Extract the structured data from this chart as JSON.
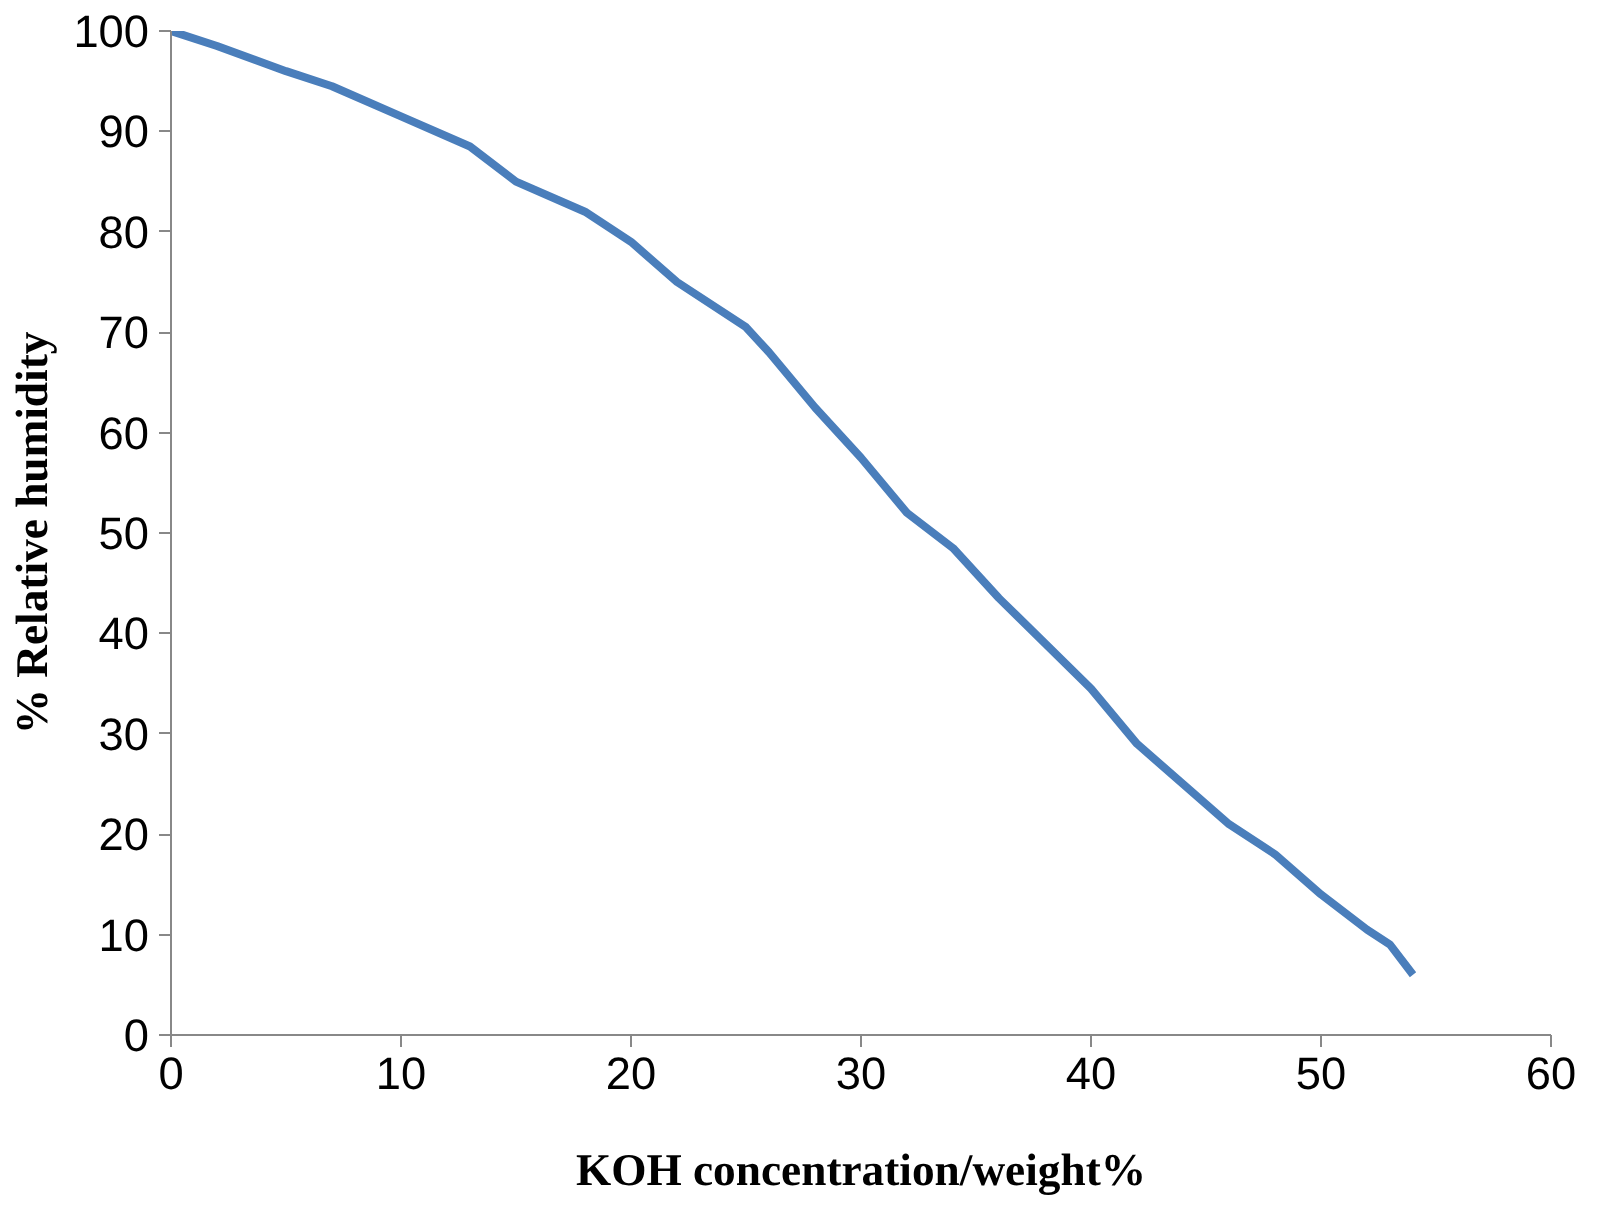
{
  "chart_data": {
    "type": "line",
    "xlabel": "KOH concentration/weight%",
    "ylabel": "% Relative humidity",
    "series": [
      {
        "color": "#4a7ebb",
        "x": [
          0,
          2,
          5,
          7,
          10,
          13,
          15,
          18,
          20,
          22,
          25,
          26,
          28,
          30,
          32,
          34,
          36,
          38,
          40,
          42,
          44,
          46,
          48,
          50,
          52,
          53,
          54
        ],
        "values": [
          100,
          98.5,
          96,
          94.5,
          91.5,
          88.5,
          85,
          82,
          79,
          75,
          70.5,
          68,
          62.5,
          57.5,
          52,
          48.5,
          43.5,
          39,
          34.5,
          29,
          25,
          21,
          18,
          14,
          10.5,
          9,
          6
        ]
      }
    ],
    "xlim": [
      0,
      60
    ],
    "ylim": [
      0,
      100
    ],
    "xticks": [
      0,
      10,
      20,
      30,
      40,
      50,
      60
    ],
    "yticks": [
      0,
      10,
      20,
      30,
      40,
      50,
      60,
      70,
      80,
      90,
      100
    ],
    "grid": false,
    "marker": "none",
    "line_style": "solid"
  }
}
